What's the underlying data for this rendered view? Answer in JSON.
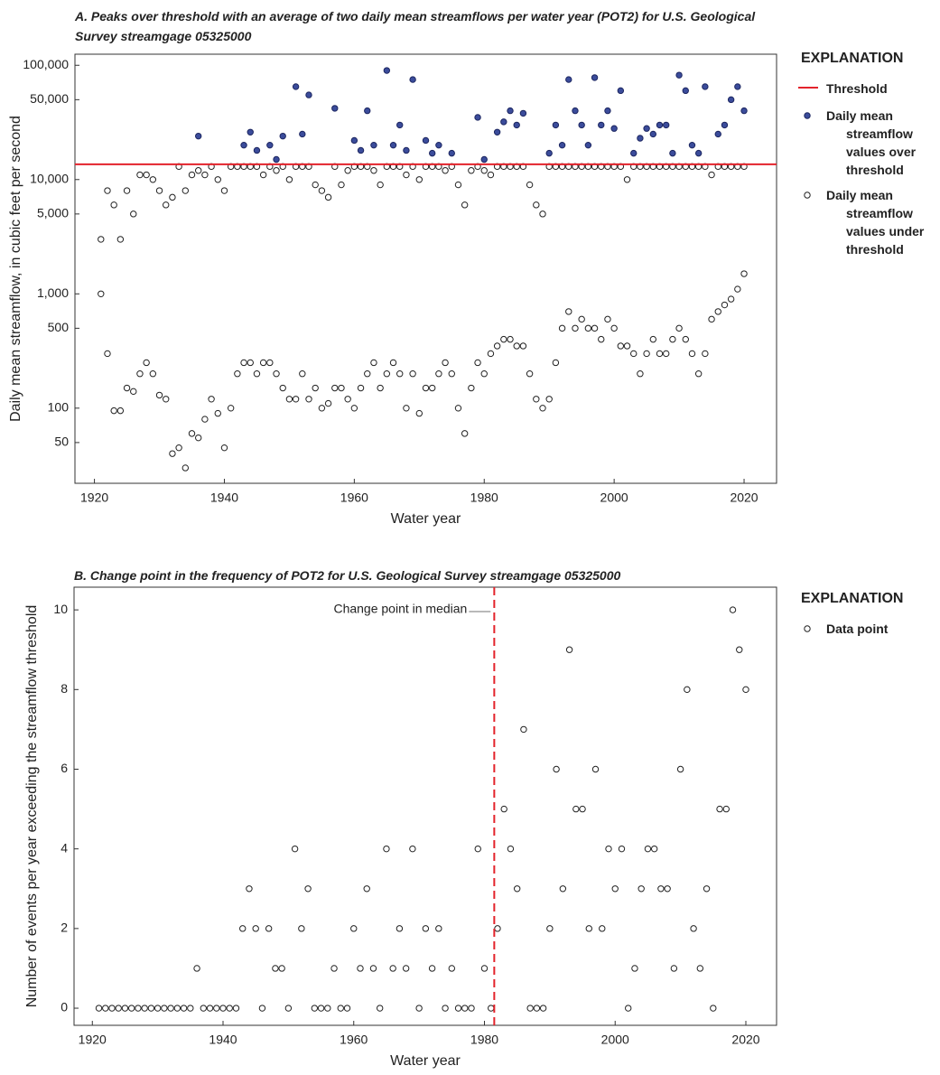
{
  "chart_data": [
    {
      "type": "scatter",
      "title": "A. Peaks over threshold with an average of two daily mean streamflows per water year (POT2) for U.S. Geological Survey streamgage 05325000",
      "xlabel": "Water year",
      "ylabel": "Daily mean streamflow, in cubic feet per second",
      "log_y": true,
      "xlim": [
        1917,
        2025
      ],
      "ylim": [
        22,
        125000
      ],
      "xticks": [
        1920,
        1940,
        1960,
        1980,
        2000,
        2020
      ],
      "yticks": [
        50,
        100,
        500,
        {
          "value": 1000,
          "label": "1,000"
        },
        {
          "value": 5000,
          "label": "5,000"
        },
        {
          "value": 10000,
          "label": "10,000"
        },
        {
          "value": 50000,
          "label": "50,000"
        },
        {
          "value": 100000,
          "label": "100,000"
        }
      ],
      "legend_title": "EXPLANATION",
      "threshold": {
        "name": "Threshold",
        "value": 13600,
        "color": "#e3232b"
      },
      "series": [
        {
          "name": "Daily mean streamflow values over threshold",
          "color": "#3b4c9b",
          "filled": true,
          "x": [
            1936,
            1943,
            1944,
            1945,
            1947,
            1948,
            1949,
            1951,
            1952,
            1953,
            1957,
            1960,
            1961,
            1962,
            1963,
            1965,
            1966,
            1967,
            1968,
            1969,
            1971,
            1972,
            1973,
            1975,
            1979,
            1980,
            1982,
            1983,
            1984,
            1985,
            1986,
            1990,
            1991,
            1992,
            1993,
            1994,
            1995,
            1996,
            1997,
            1998,
            1999,
            2000,
            2001,
            2003,
            2004,
            2005,
            2006,
            2007,
            2008,
            2009,
            2010,
            2011,
            2012,
            2013,
            2014,
            2016,
            2017,
            2018,
            2019,
            2020
          ],
          "values": [
            24000,
            20000,
            26000,
            18000,
            20000,
            15000,
            24000,
            65000,
            25000,
            55000,
            42000,
            22000,
            18000,
            40000,
            20000,
            90000,
            20000,
            30000,
            18000,
            75000,
            22000,
            17000,
            20000,
            17000,
            35000,
            15000,
            26000,
            32000,
            40000,
            30000,
            38000,
            17000,
            30000,
            20000,
            75000,
            40000,
            30000,
            20000,
            78000,
            30000,
            40000,
            28000,
            60000,
            17000,
            23000,
            28000,
            25000,
            30000,
            30000,
            17000,
            82000,
            60000,
            20000,
            17000,
            65000,
            25000,
            30000,
            50000,
            65000,
            40000
          ]
        },
        {
          "name": "Daily mean streamflow values under threshold",
          "color": "#222222",
          "filled": false,
          "x": [
            1921,
            1922,
            1923,
            1924,
            1925,
            1926,
            1927,
            1928,
            1929,
            1930,
            1931,
            1932,
            1933,
            1934,
            1935,
            1936,
            1937,
            1938,
            1939,
            1940,
            1941,
            1942,
            1943,
            1944,
            1945,
            1946,
            1947,
            1948,
            1949,
            1950,
            1951,
            1952,
            1953,
            1954,
            1955,
            1956,
            1957,
            1958,
            1959,
            1960,
            1961,
            1962,
            1963,
            1964,
            1965,
            1966,
            1967,
            1968,
            1969,
            1970,
            1971,
            1972,
            1973,
            1974,
            1975,
            1976,
            1977,
            1978,
            1979,
            1980,
            1981,
            1982,
            1983,
            1984,
            1985,
            1986,
            1987,
            1988,
            1989,
            1990,
            1991,
            1992,
            1993,
            1994,
            1995,
            1996,
            1997,
            1998,
            1999,
            2000,
            2001,
            2002,
            2003,
            2004,
            2005,
            2006,
            2007,
            2008,
            2009,
            2010,
            2011,
            2012,
            2013,
            2014,
            2015,
            2016,
            2017,
            2018,
            2019,
            2020,
            1921,
            1922,
            1923,
            1924,
            1925,
            1926,
            1927,
            1928,
            1929,
            1930,
            1931,
            1932,
            1933,
            1934,
            1935,
            1936,
            1937,
            1938,
            1939,
            1940,
            1941,
            1942,
            1943,
            1944,
            1945,
            1946,
            1947,
            1948,
            1949,
            1950,
            1951,
            1952,
            1953,
            1954,
            1955,
            1956,
            1957,
            1958,
            1959,
            1960,
            1961,
            1962,
            1963,
            1964,
            1965,
            1966,
            1967,
            1968,
            1969,
            1970,
            1971,
            1972,
            1973,
            1974,
            1975,
            1976,
            1977,
            1978,
            1979,
            1980,
            1981,
            1982,
            1983,
            1984,
            1985,
            1986,
            1987,
            1988,
            1989,
            1990,
            1991,
            1992,
            1993,
            1994,
            1995,
            1996,
            1997,
            1998,
            1999,
            2000,
            2001,
            2002,
            2003,
            2004,
            2005,
            2006,
            2007,
            2008,
            2009,
            2010,
            2011,
            2012,
            2013,
            2014,
            2015,
            2016,
            2017,
            2018,
            2019,
            2020
          ],
          "values": [
            1000,
            300,
            95,
            95,
            150,
            140,
            200,
            250,
            200,
            130,
            120,
            40,
            45,
            30,
            60,
            55,
            80,
            120,
            90,
            45,
            100,
            200,
            250,
            250,
            200,
            250,
            250,
            200,
            150,
            120,
            120,
            200,
            120,
            150,
            100,
            110,
            150,
            150,
            120,
            100,
            150,
            200,
            250,
            150,
            200,
            250,
            200,
            100,
            200,
            90,
            150,
            150,
            200,
            250,
            200,
            100,
            60,
            150,
            250,
            200,
            300,
            350,
            400,
            400,
            350,
            350,
            200,
            120,
            100,
            120,
            250,
            500,
            700,
            500,
            600,
            500,
            500,
            400,
            600,
            500,
            350,
            350,
            300,
            200,
            300,
            400,
            300,
            300,
            400,
            500,
            400,
            300,
            200,
            300,
            600,
            700,
            800,
            900,
            1100,
            1500,
            3000,
            8000,
            6000,
            3000,
            8000,
            5000,
            11000,
            11000,
            10000,
            8000,
            6000,
            7000,
            13000,
            8000,
            11000,
            12000,
            11000,
            13000,
            10000,
            8000,
            13000,
            13000,
            13000,
            13000,
            13000,
            11000,
            13000,
            12000,
            13000,
            10000,
            13000,
            13000,
            13000,
            9000,
            8000,
            7000,
            13000,
            9000,
            12000,
            13000,
            13000,
            13000,
            12000,
            9000,
            13000,
            13000,
            13000,
            11000,
            13000,
            10000,
            13000,
            13000,
            13000,
            12000,
            13000,
            9000,
            6000,
            12000,
            13000,
            12000,
            11000,
            13000,
            13000,
            13000,
            13000,
            13000,
            9000,
            6000,
            5000,
            13000,
            13000,
            13000,
            13000,
            13000,
            13000,
            13000,
            13000,
            13000,
            13000,
            13000,
            13000,
            10000,
            13000,
            13000,
            13000,
            13000,
            13000,
            13000,
            13000,
            13000,
            13000,
            13000,
            13000,
            13000,
            11000,
            13000,
            13000,
            13000,
            13000,
            13000
          ]
        }
      ]
    },
    {
      "type": "scatter",
      "title": "B. Change point in the frequency of POT2 for U.S. Geological Survey streamgage 05325000",
      "xlabel": "Water year",
      "ylabel": "Number of events per year exceeding the streamflow threshold",
      "log_y": false,
      "xlim": [
        1917.2,
        2024.7
      ],
      "ylim": [
        -0.43,
        10.57
      ],
      "xticks": [
        1920,
        1940,
        1960,
        1980,
        2000,
        2020
      ],
      "yticks": [
        0,
        2,
        4,
        6,
        8,
        10
      ],
      "legend_title": "EXPLANATION",
      "change_point": {
        "label": "Change point in median",
        "x": 1981.5,
        "color": "#e3232b"
      },
      "series": [
        {
          "name": "Data point",
          "color": "#222222",
          "filled": false,
          "x": [
            1921,
            1922,
            1923,
            1924,
            1925,
            1926,
            1927,
            1928,
            1929,
            1930,
            1931,
            1932,
            1933,
            1934,
            1935,
            1936,
            1937,
            1938,
            1939,
            1940,
            1941,
            1942,
            1943,
            1944,
            1945,
            1946,
            1947,
            1948,
            1949,
            1950,
            1951,
            1952,
            1953,
            1954,
            1955,
            1956,
            1957,
            1958,
            1959,
            1960,
            1961,
            1962,
            1963,
            1964,
            1965,
            1966,
            1967,
            1968,
            1969,
            1970,
            1971,
            1972,
            1973,
            1974,
            1975,
            1976,
            1977,
            1978,
            1979,
            1980,
            1981,
            1982,
            1983,
            1984,
            1985,
            1986,
            1987,
            1988,
            1989,
            1990,
            1991,
            1992,
            1993,
            1994,
            1995,
            1996,
            1997,
            1998,
            1999,
            2000,
            2001,
            2002,
            2003,
            2004,
            2005,
            2006,
            2007,
            2008,
            2009,
            2010,
            2011,
            2012,
            2013,
            2014,
            2015,
            2016,
            2017,
            2018,
            2019,
            2020
          ],
          "values": [
            0,
            0,
            0,
            0,
            0,
            0,
            0,
            0,
            0,
            0,
            0,
            0,
            0,
            0,
            0,
            1,
            0,
            0,
            0,
            0,
            0,
            0,
            2,
            3,
            2,
            0,
            2,
            1,
            1,
            0,
            4,
            2,
            3,
            0,
            0,
            0,
            1,
            0,
            0,
            2,
            1,
            3,
            1,
            0,
            4,
            1,
            2,
            1,
            4,
            0,
            2,
            1,
            2,
            0,
            1,
            0,
            0,
            0,
            4,
            1,
            0,
            2,
            5,
            4,
            3,
            7,
            0,
            0,
            0,
            2,
            6,
            3,
            9,
            5,
            5,
            2,
            6,
            2,
            4,
            3,
            4,
            0,
            1,
            3,
            4,
            4,
            3,
            3,
            1,
            6,
            8,
            2,
            1,
            3,
            0,
            5,
            5,
            10,
            9,
            8
          ]
        }
      ]
    }
  ]
}
